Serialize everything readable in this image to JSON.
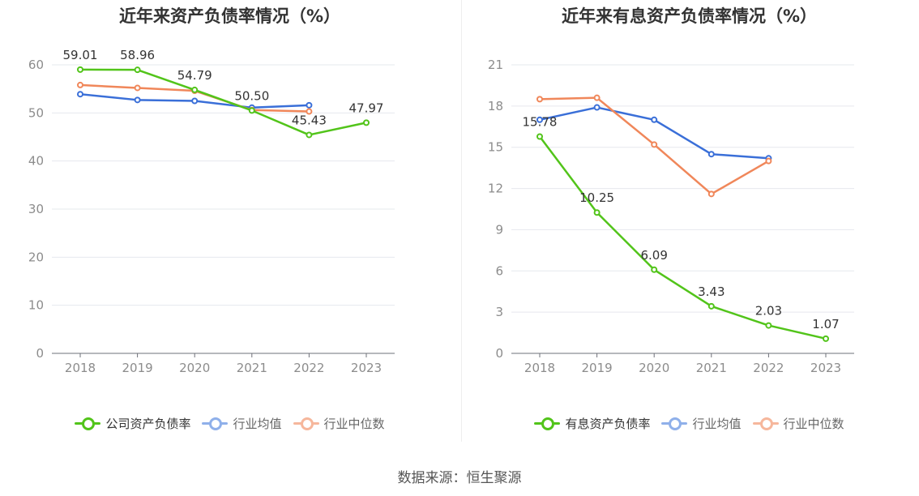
{
  "colors": {
    "company": "#52c41a",
    "average": "#3a6fd8",
    "median": "#f0875a"
  },
  "source": "数据来源：恒生聚源",
  "chart_data": [
    {
      "type": "line",
      "title": "近年来资产负债率情况（%）",
      "categories": [
        "2018",
        "2019",
        "2020",
        "2021",
        "2022",
        "2023"
      ],
      "ylim": [
        0,
        60
      ],
      "yticks": [
        0,
        10,
        20,
        30,
        40,
        50,
        60
      ],
      "grid": true,
      "legend_position": "bottom",
      "series": [
        {
          "name": "公司资产负债率",
          "color": "#52c41a",
          "labeled": true,
          "values": [
            59.01,
            58.96,
            54.79,
            50.5,
            45.43,
            47.97
          ],
          "labels": [
            "59.01",
            "58.96",
            "54.79",
            "50.50",
            "45.43",
            "47.97"
          ]
        },
        {
          "name": "行业均值",
          "color": "#3a6fd8",
          "labeled": false,
          "values": [
            53.9,
            52.7,
            52.5,
            51.1,
            51.6,
            null
          ]
        },
        {
          "name": "行业中位数",
          "color": "#f0875a",
          "labeled": false,
          "values": [
            55.8,
            55.2,
            54.6,
            50.6,
            50.3,
            null
          ]
        }
      ]
    },
    {
      "type": "line",
      "title": "近年来有息资产负债率情况（%）",
      "categories": [
        "2018",
        "2019",
        "2020",
        "2021",
        "2022",
        "2023"
      ],
      "ylim": [
        0,
        21
      ],
      "yticks": [
        0,
        3,
        6,
        9,
        12,
        15,
        18,
        21
      ],
      "grid": true,
      "legend_position": "bottom",
      "series": [
        {
          "name": "有息资产负债率",
          "color": "#52c41a",
          "labeled": true,
          "values": [
            15.78,
            10.25,
            6.09,
            3.43,
            2.03,
            1.07
          ],
          "labels": [
            "15.78",
            "10.25",
            "6.09",
            "3.43",
            "2.03",
            "1.07"
          ]
        },
        {
          "name": "行业均值",
          "color": "#3a6fd8",
          "labeled": false,
          "values": [
            17.0,
            17.9,
            17.0,
            14.5,
            14.2,
            null
          ]
        },
        {
          "name": "行业中位数",
          "color": "#f0875a",
          "labeled": false,
          "values": [
            18.5,
            18.6,
            15.2,
            11.6,
            14.0,
            null
          ]
        }
      ]
    }
  ]
}
